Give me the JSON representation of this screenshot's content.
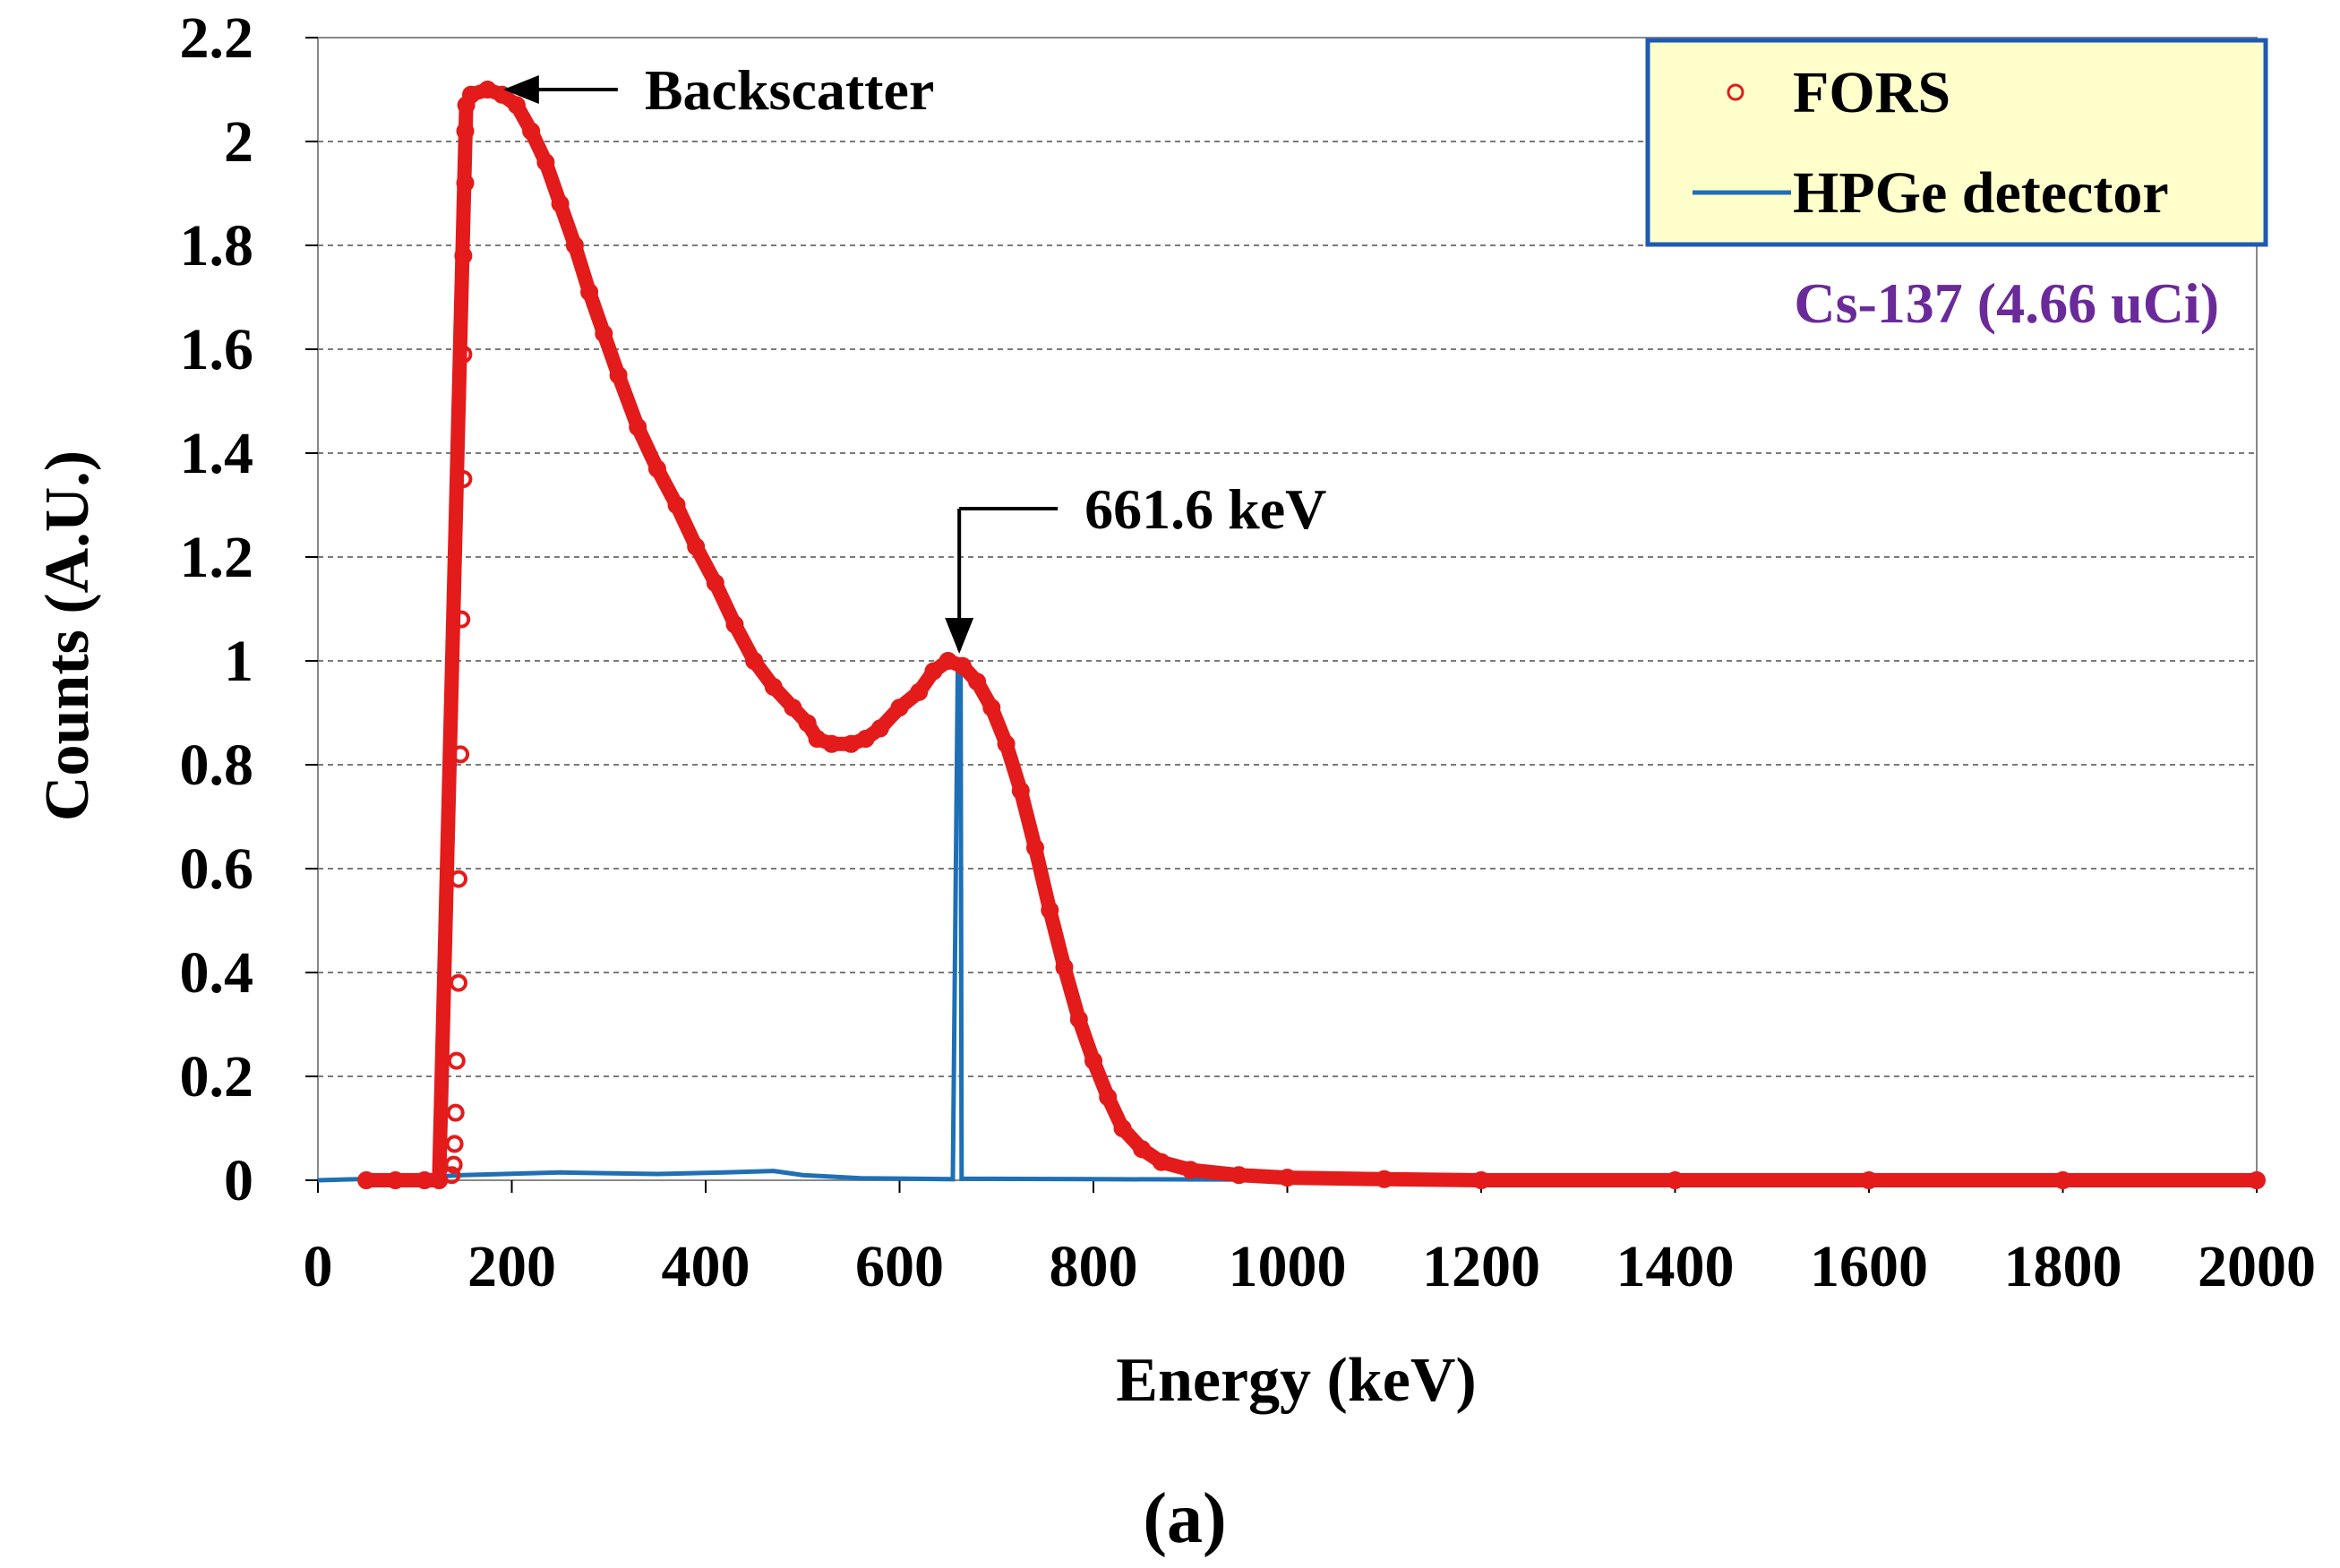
{
  "chart_data": {
    "type": "scatter",
    "title": "",
    "xlabel": "Energy (keV)",
    "ylabel": "Counts (A.U.)",
    "xlim": [
      0,
      2000
    ],
    "ylim": [
      0,
      2.2
    ],
    "xticks": [
      0,
      200,
      400,
      600,
      800,
      1000,
      1200,
      1400,
      1600,
      1800,
      2000
    ],
    "yticks": [
      0,
      0.2,
      0.4,
      0.6,
      0.8,
      1,
      1.2,
      1.4,
      1.6,
      1.8,
      2,
      2.2
    ],
    "xtick_labels": [
      "0",
      "200",
      "400",
      "600",
      "800",
      "1000",
      "1200",
      "1400",
      "1600",
      "1800",
      "2000"
    ],
    "ytick_labels": [
      "0",
      "0.2",
      "0.4",
      "0.6",
      "0.8",
      "1",
      "1.2",
      "1.4",
      "1.6",
      "1.8",
      "2",
      "2.2"
    ],
    "grid": true,
    "legend_position": "top-right",
    "panel_label": "(a)",
    "source_label": "Cs-137 (4.66 uCi)",
    "series": [
      {
        "name": "FORS",
        "kind": "scatter",
        "color": "#e31b1b",
        "points": [
          [
            50,
            0
          ],
          [
            80,
            0
          ],
          [
            110,
            0
          ],
          [
            125,
            0
          ],
          [
            138,
            0.01
          ],
          [
            140,
            0.03
          ],
          [
            141,
            0.07
          ],
          [
            142,
            0.13
          ],
          [
            143,
            0.23
          ],
          [
            145,
            0.38
          ],
          [
            145,
            0.58
          ],
          [
            147,
            0.82
          ],
          [
            148,
            1.08
          ],
          [
            150,
            1.35
          ],
          [
            150,
            1.59
          ],
          [
            150,
            1.78
          ],
          [
            152,
            1.92
          ],
          [
            152,
            2.02
          ],
          [
            153,
            2.07
          ],
          [
            158,
            2.09
          ],
          [
            175,
            2.1
          ],
          [
            190,
            2.09
          ],
          [
            205,
            2.07
          ],
          [
            220,
            2.02
          ],
          [
            235,
            1.96
          ],
          [
            250,
            1.88
          ],
          [
            265,
            1.8
          ],
          [
            280,
            1.71
          ],
          [
            295,
            1.63
          ],
          [
            310,
            1.55
          ],
          [
            330,
            1.45
          ],
          [
            350,
            1.37
          ],
          [
            370,
            1.3
          ],
          [
            390,
            1.22
          ],
          [
            410,
            1.15
          ],
          [
            430,
            1.07
          ],
          [
            450,
            1.0
          ],
          [
            470,
            0.95
          ],
          [
            490,
            0.91
          ],
          [
            505,
            0.88
          ],
          [
            515,
            0.85
          ],
          [
            530,
            0.84
          ],
          [
            550,
            0.84
          ],
          [
            565,
            0.85
          ],
          [
            580,
            0.87
          ],
          [
            600,
            0.91
          ],
          [
            620,
            0.94
          ],
          [
            635,
            0.98
          ],
          [
            650,
            1.0
          ],
          [
            665,
            0.99
          ],
          [
            680,
            0.96
          ],
          [
            695,
            0.91
          ],
          [
            710,
            0.84
          ],
          [
            725,
            0.75
          ],
          [
            740,
            0.64
          ],
          [
            755,
            0.52
          ],
          [
            770,
            0.41
          ],
          [
            785,
            0.31
          ],
          [
            800,
            0.23
          ],
          [
            815,
            0.16
          ],
          [
            830,
            0.1
          ],
          [
            850,
            0.06
          ],
          [
            870,
            0.035
          ],
          [
            900,
            0.02
          ],
          [
            950,
            0.01
          ],
          [
            1000,
            0.005
          ],
          [
            1100,
            0.002
          ],
          [
            1200,
            0
          ],
          [
            1400,
            0
          ],
          [
            1600,
            0
          ],
          [
            1800,
            0
          ],
          [
            2000,
            0
          ]
        ]
      },
      {
        "name": "HPGe detector",
        "kind": "line",
        "color": "#1f6fb5",
        "points": [
          [
            0,
            0
          ],
          [
            100,
            0.005
          ],
          [
            150,
            0.01
          ],
          [
            250,
            0.015
          ],
          [
            350,
            0.012
          ],
          [
            420,
            0.015
          ],
          [
            470,
            0.018
          ],
          [
            500,
            0.01
          ],
          [
            560,
            0.004
          ],
          [
            655,
            0.002
          ],
          [
            660,
            0.98
          ],
          [
            663,
            0.98
          ],
          [
            664,
            0.003
          ],
          [
            800,
            0.002
          ],
          [
            1000,
            0.001
          ],
          [
            1200,
            0
          ]
        ]
      }
    ],
    "annotations": [
      {
        "text": "Backscatter",
        "arrow_to": [
          180,
          2.1
        ],
        "placement": "right"
      },
      {
        "text": "661.6 keV",
        "arrow_to": [
          661.6,
          1.0
        ],
        "placement": "above-right"
      }
    ]
  }
}
